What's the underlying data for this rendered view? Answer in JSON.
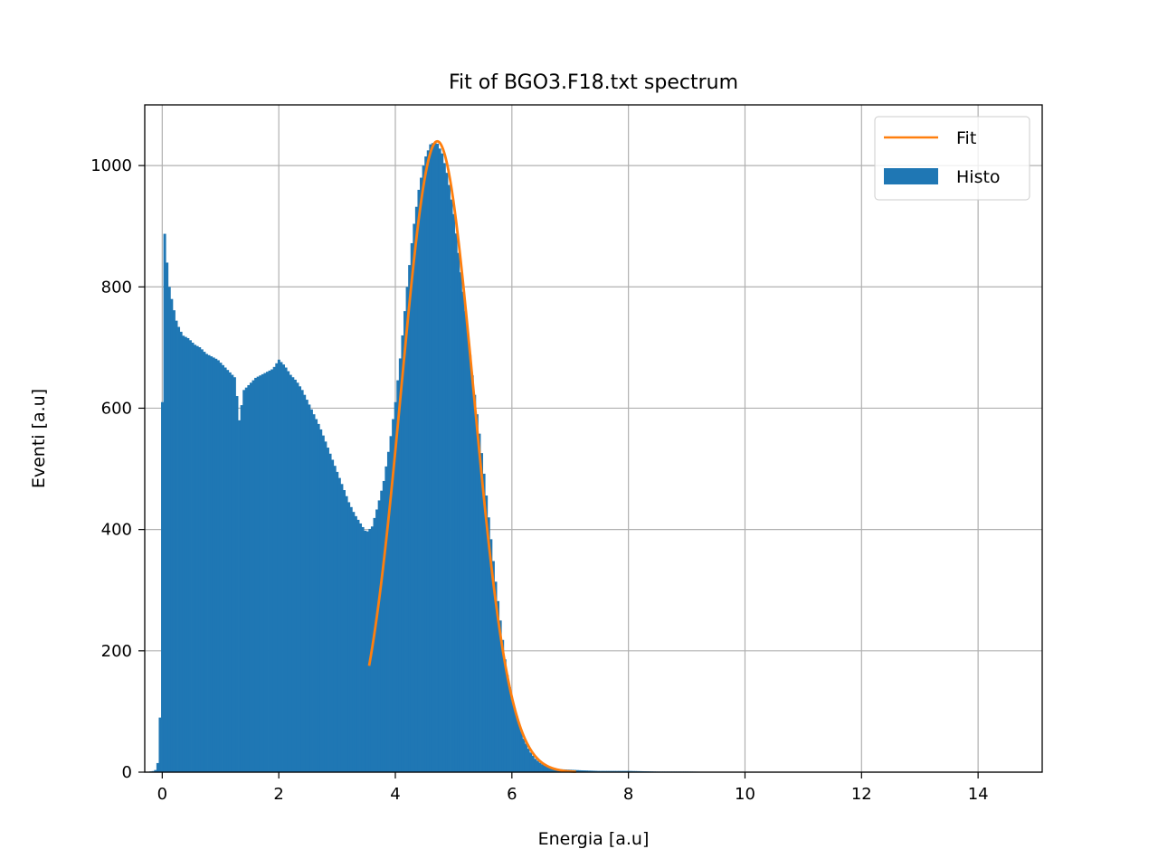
{
  "chart_data": {
    "type": "bar",
    "title": "Fit of BGO3.F18.txt spectrum",
    "xlabel": "Energia [a.u]",
    "ylabel": "Eventi [a.u]",
    "xlim": [
      -0.3,
      15.1
    ],
    "ylim": [
      0,
      1100
    ],
    "xticks": [
      0,
      2,
      4,
      6,
      8,
      10,
      12,
      14
    ],
    "yticks": [
      0,
      200,
      400,
      600,
      800,
      1000
    ],
    "grid": true,
    "legend": {
      "placement": "top-right",
      "entries": [
        {
          "label": "Fit",
          "kind": "line",
          "color": "#ff7f0e"
        },
        {
          "label": "Histo",
          "kind": "patch",
          "color": "#1f77b4"
        }
      ]
    },
    "histogram": {
      "name": "Histo",
      "color": "#1f77b4",
      "bin_width": 0.04,
      "points": [
        [
          -0.3,
          0
        ],
        [
          -0.14,
          2
        ],
        [
          -0.1,
          5
        ],
        [
          -0.07,
          20
        ],
        [
          -0.05,
          70
        ],
        [
          -0.03,
          110
        ],
        [
          -0.01,
          310
        ],
        [
          0.01,
          910
        ],
        [
          0.05,
          880
        ],
        [
          0.08,
          840
        ],
        [
          0.12,
          800
        ],
        [
          0.18,
          770
        ],
        [
          0.25,
          740
        ],
        [
          0.35,
          720
        ],
        [
          0.45,
          715
        ],
        [
          0.55,
          705
        ],
        [
          0.65,
          700
        ],
        [
          0.75,
          690
        ],
        [
          0.85,
          685
        ],
        [
          0.95,
          680
        ],
        [
          1.05,
          670
        ],
        [
          1.15,
          660
        ],
        [
          1.25,
          650
        ],
        [
          1.32,
          580
        ],
        [
          1.4,
          630
        ],
        [
          1.5,
          640
        ],
        [
          1.6,
          650
        ],
        [
          1.7,
          655
        ],
        [
          1.8,
          660
        ],
        [
          1.9,
          665
        ],
        [
          2.0,
          680
        ],
        [
          2.1,
          670
        ],
        [
          2.2,
          655
        ],
        [
          2.3,
          645
        ],
        [
          2.4,
          630
        ],
        [
          2.5,
          610
        ],
        [
          2.6,
          590
        ],
        [
          2.7,
          570
        ],
        [
          2.8,
          545
        ],
        [
          2.9,
          520
        ],
        [
          3.0,
          495
        ],
        [
          3.1,
          470
        ],
        [
          3.2,
          445
        ],
        [
          3.3,
          425
        ],
        [
          3.4,
          410
        ],
        [
          3.5,
          395
        ],
        [
          3.6,
          405
        ],
        [
          3.7,
          440
        ],
        [
          3.8,
          480
        ],
        [
          3.9,
          540
        ],
        [
          4.0,
          610
        ],
        [
          4.1,
          700
        ],
        [
          4.2,
          800
        ],
        [
          4.3,
          890
        ],
        [
          4.4,
          960
        ],
        [
          4.5,
          1010
        ],
        [
          4.6,
          1035
        ],
        [
          4.7,
          1040
        ],
        [
          4.8,
          1020
        ],
        [
          4.9,
          980
        ],
        [
          5.0,
          920
        ],
        [
          5.1,
          840
        ],
        [
          5.2,
          760
        ],
        [
          5.3,
          670
        ],
        [
          5.4,
          590
        ],
        [
          5.5,
          510
        ],
        [
          5.6,
          420
        ],
        [
          5.7,
          330
        ],
        [
          5.8,
          250
        ],
        [
          5.9,
          170
        ],
        [
          6.0,
          120
        ],
        [
          6.1,
          85
        ],
        [
          6.2,
          55
        ],
        [
          6.3,
          35
        ],
        [
          6.4,
          22
        ],
        [
          6.5,
          14
        ],
        [
          6.6,
          9
        ],
        [
          6.7,
          6
        ],
        [
          6.8,
          5
        ],
        [
          7.0,
          4
        ],
        [
          7.2,
          3
        ],
        [
          7.5,
          2
        ],
        [
          8.0,
          2
        ],
        [
          8.5,
          1
        ],
        [
          9.0,
          1
        ],
        [
          9.5,
          0.5
        ],
        [
          10.0,
          0
        ],
        [
          15.0,
          0
        ]
      ]
    },
    "fit": {
      "name": "Fit",
      "color": "#ff7f0e",
      "model": "gaussian",
      "amplitude": 1040,
      "mean": 4.72,
      "sigma": 0.62,
      "x_range": [
        3.55,
        7.1
      ]
    }
  }
}
